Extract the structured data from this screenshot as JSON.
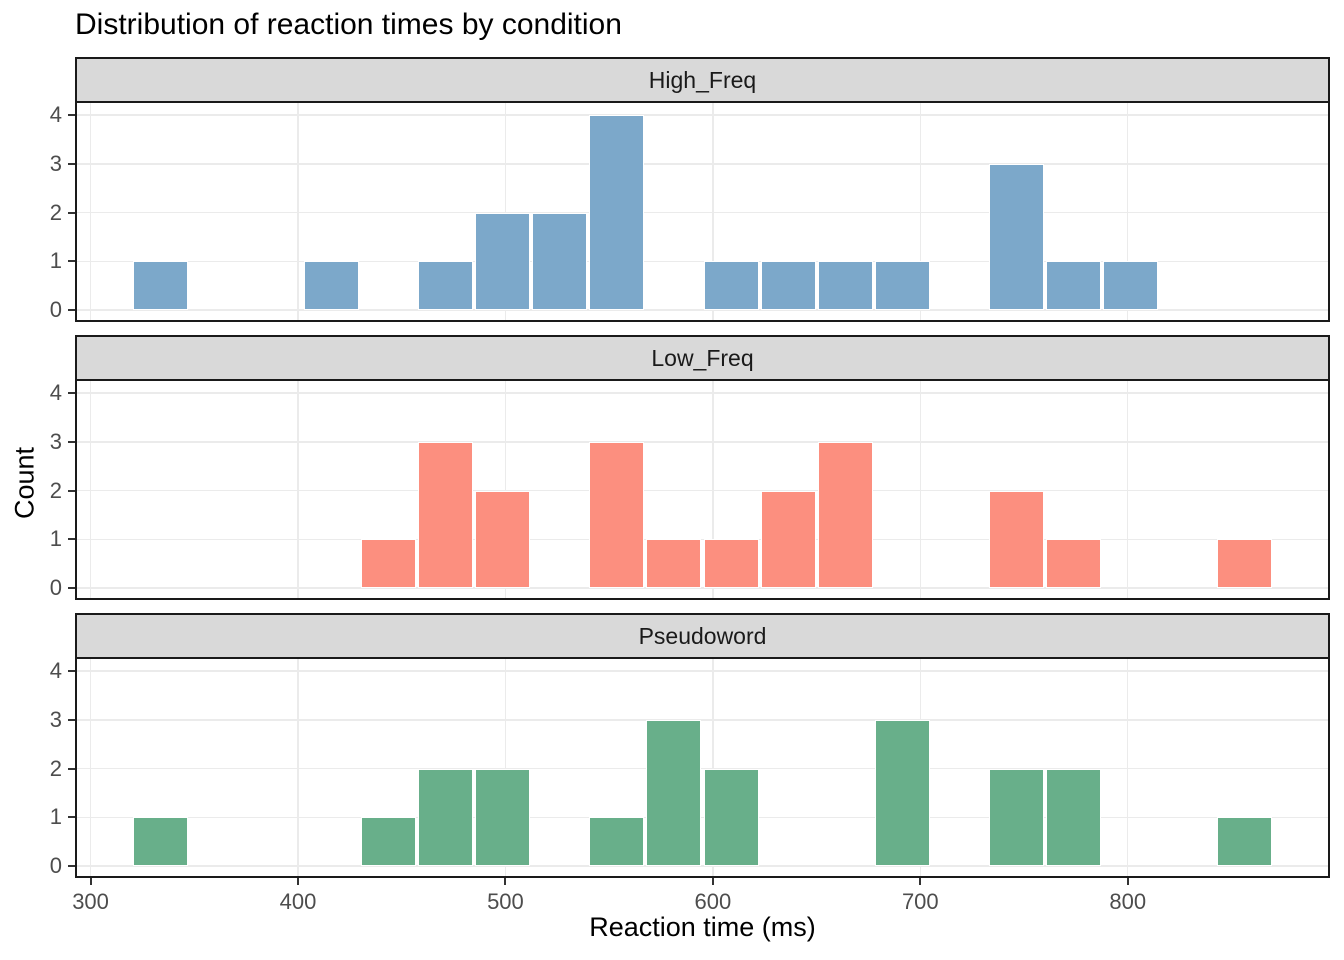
{
  "chart_data": {
    "type": "bar",
    "subtype": "faceted-histogram",
    "title": "Distribution of reaction times by condition",
    "xlabel": "Reaction time (ms)",
    "ylabel": "Count",
    "x_ticks": [
      300,
      400,
      500,
      600,
      700,
      800
    ],
    "y_ticks": [
      0,
      1,
      2,
      3,
      4
    ],
    "xlim": [
      292.5,
      897.5
    ],
    "ylim": [
      -0.2,
      4.2
    ],
    "binwidth": 27.5,
    "bin_edges": [
      320,
      347.5,
      375,
      402.5,
      430,
      457.5,
      485,
      512.5,
      540,
      567.5,
      595,
      622.5,
      650,
      677.5,
      705,
      732.5,
      760,
      787.5,
      815,
      842.5,
      870
    ],
    "grid": "major-only",
    "legend": "none",
    "colors": {
      "panel_background": "#FFFFFF",
      "strip_background": "#D9D9D9",
      "panel_border": "#1A1A1A",
      "gridline": "#EBEBEB",
      "axis_text": "#4D4D4D",
      "bar_border": "#FFFFFF"
    },
    "facets": [
      {
        "label": "High_Freq",
        "color": "#7CA8CA",
        "counts": [
          1,
          0,
          0,
          1,
          0,
          1,
          2,
          2,
          4,
          0,
          1,
          1,
          1,
          1,
          0,
          3,
          1,
          1,
          0,
          0
        ]
      },
      {
        "label": "Low_Freq",
        "color": "#FC8F7F",
        "counts": [
          0,
          0,
          0,
          0,
          1,
          3,
          2,
          0,
          3,
          1,
          1,
          2,
          3,
          0,
          0,
          2,
          1,
          0,
          0,
          1
        ]
      },
      {
        "label": "Pseudoword",
        "color": "#68AF8A",
        "counts": [
          1,
          0,
          0,
          0,
          1,
          2,
          2,
          0,
          1,
          3,
          2,
          0,
          0,
          3,
          0,
          2,
          2,
          0,
          0,
          1
        ]
      }
    ]
  }
}
